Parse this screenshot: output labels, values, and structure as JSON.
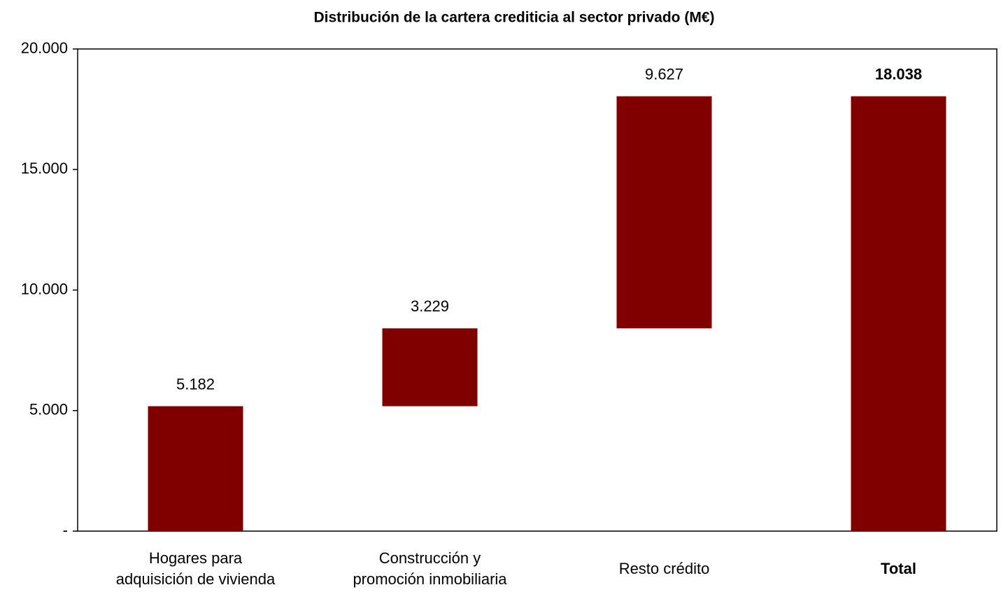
{
  "chart_data": {
    "type": "waterfall",
    "title": "Distribución de la cartera crediticia al sector privado (M€)",
    "categories": [
      "Hogares para\nadquisición de vivienda",
      "Construcción y\npromoción inmobiliaria",
      "Resto crédito",
      "Total"
    ],
    "values": [
      5182,
      3229,
      9627,
      18038
    ],
    "value_labels": [
      "5.182",
      "3.229",
      "9.627",
      "18.038"
    ],
    "totals": [
      false,
      false,
      false,
      true
    ],
    "color": "#800000",
    "ylim": [
      0,
      20000
    ],
    "yticks": [
      {
        "value": 0,
        "label": "-"
      },
      {
        "value": 5000,
        "label": "5.000"
      },
      {
        "value": 10000,
        "label": "10.000"
      },
      {
        "value": 15000,
        "label": "15.000"
      },
      {
        "value": 20000,
        "label": "20.000"
      }
    ]
  }
}
